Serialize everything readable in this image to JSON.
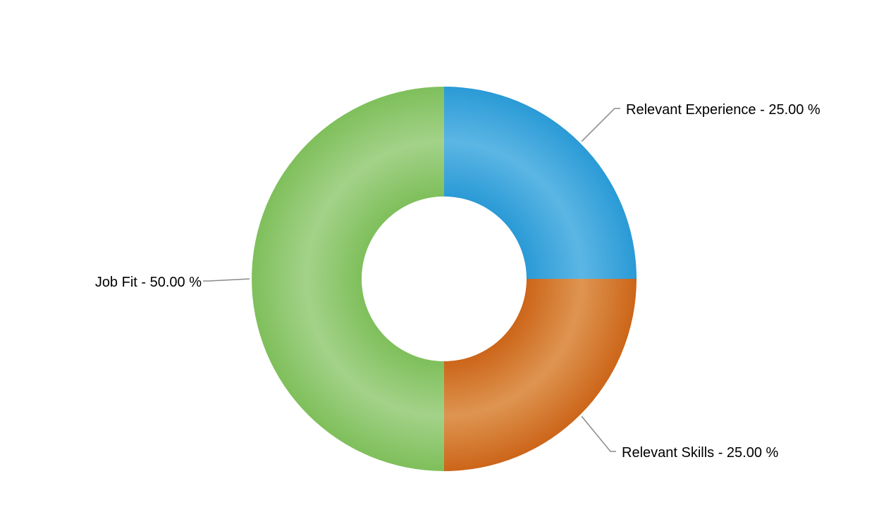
{
  "chart_data": {
    "type": "pie",
    "donut": true,
    "title": "",
    "slices": [
      {
        "label": "Relevant Experience - 25.00 %",
        "value": 25.0,
        "color": "#2a9ad6",
        "highlight": "#5cb6e4"
      },
      {
        "label": "Relevant Skills - 25.00 %",
        "value": 25.0,
        "color": "#cc6519",
        "highlight": "#de9551"
      },
      {
        "label": "Job Fit - 50.00 %",
        "value": 50.0,
        "color": "#7fbf5b",
        "highlight": "#a3d289"
      }
    ],
    "legend": "none"
  }
}
